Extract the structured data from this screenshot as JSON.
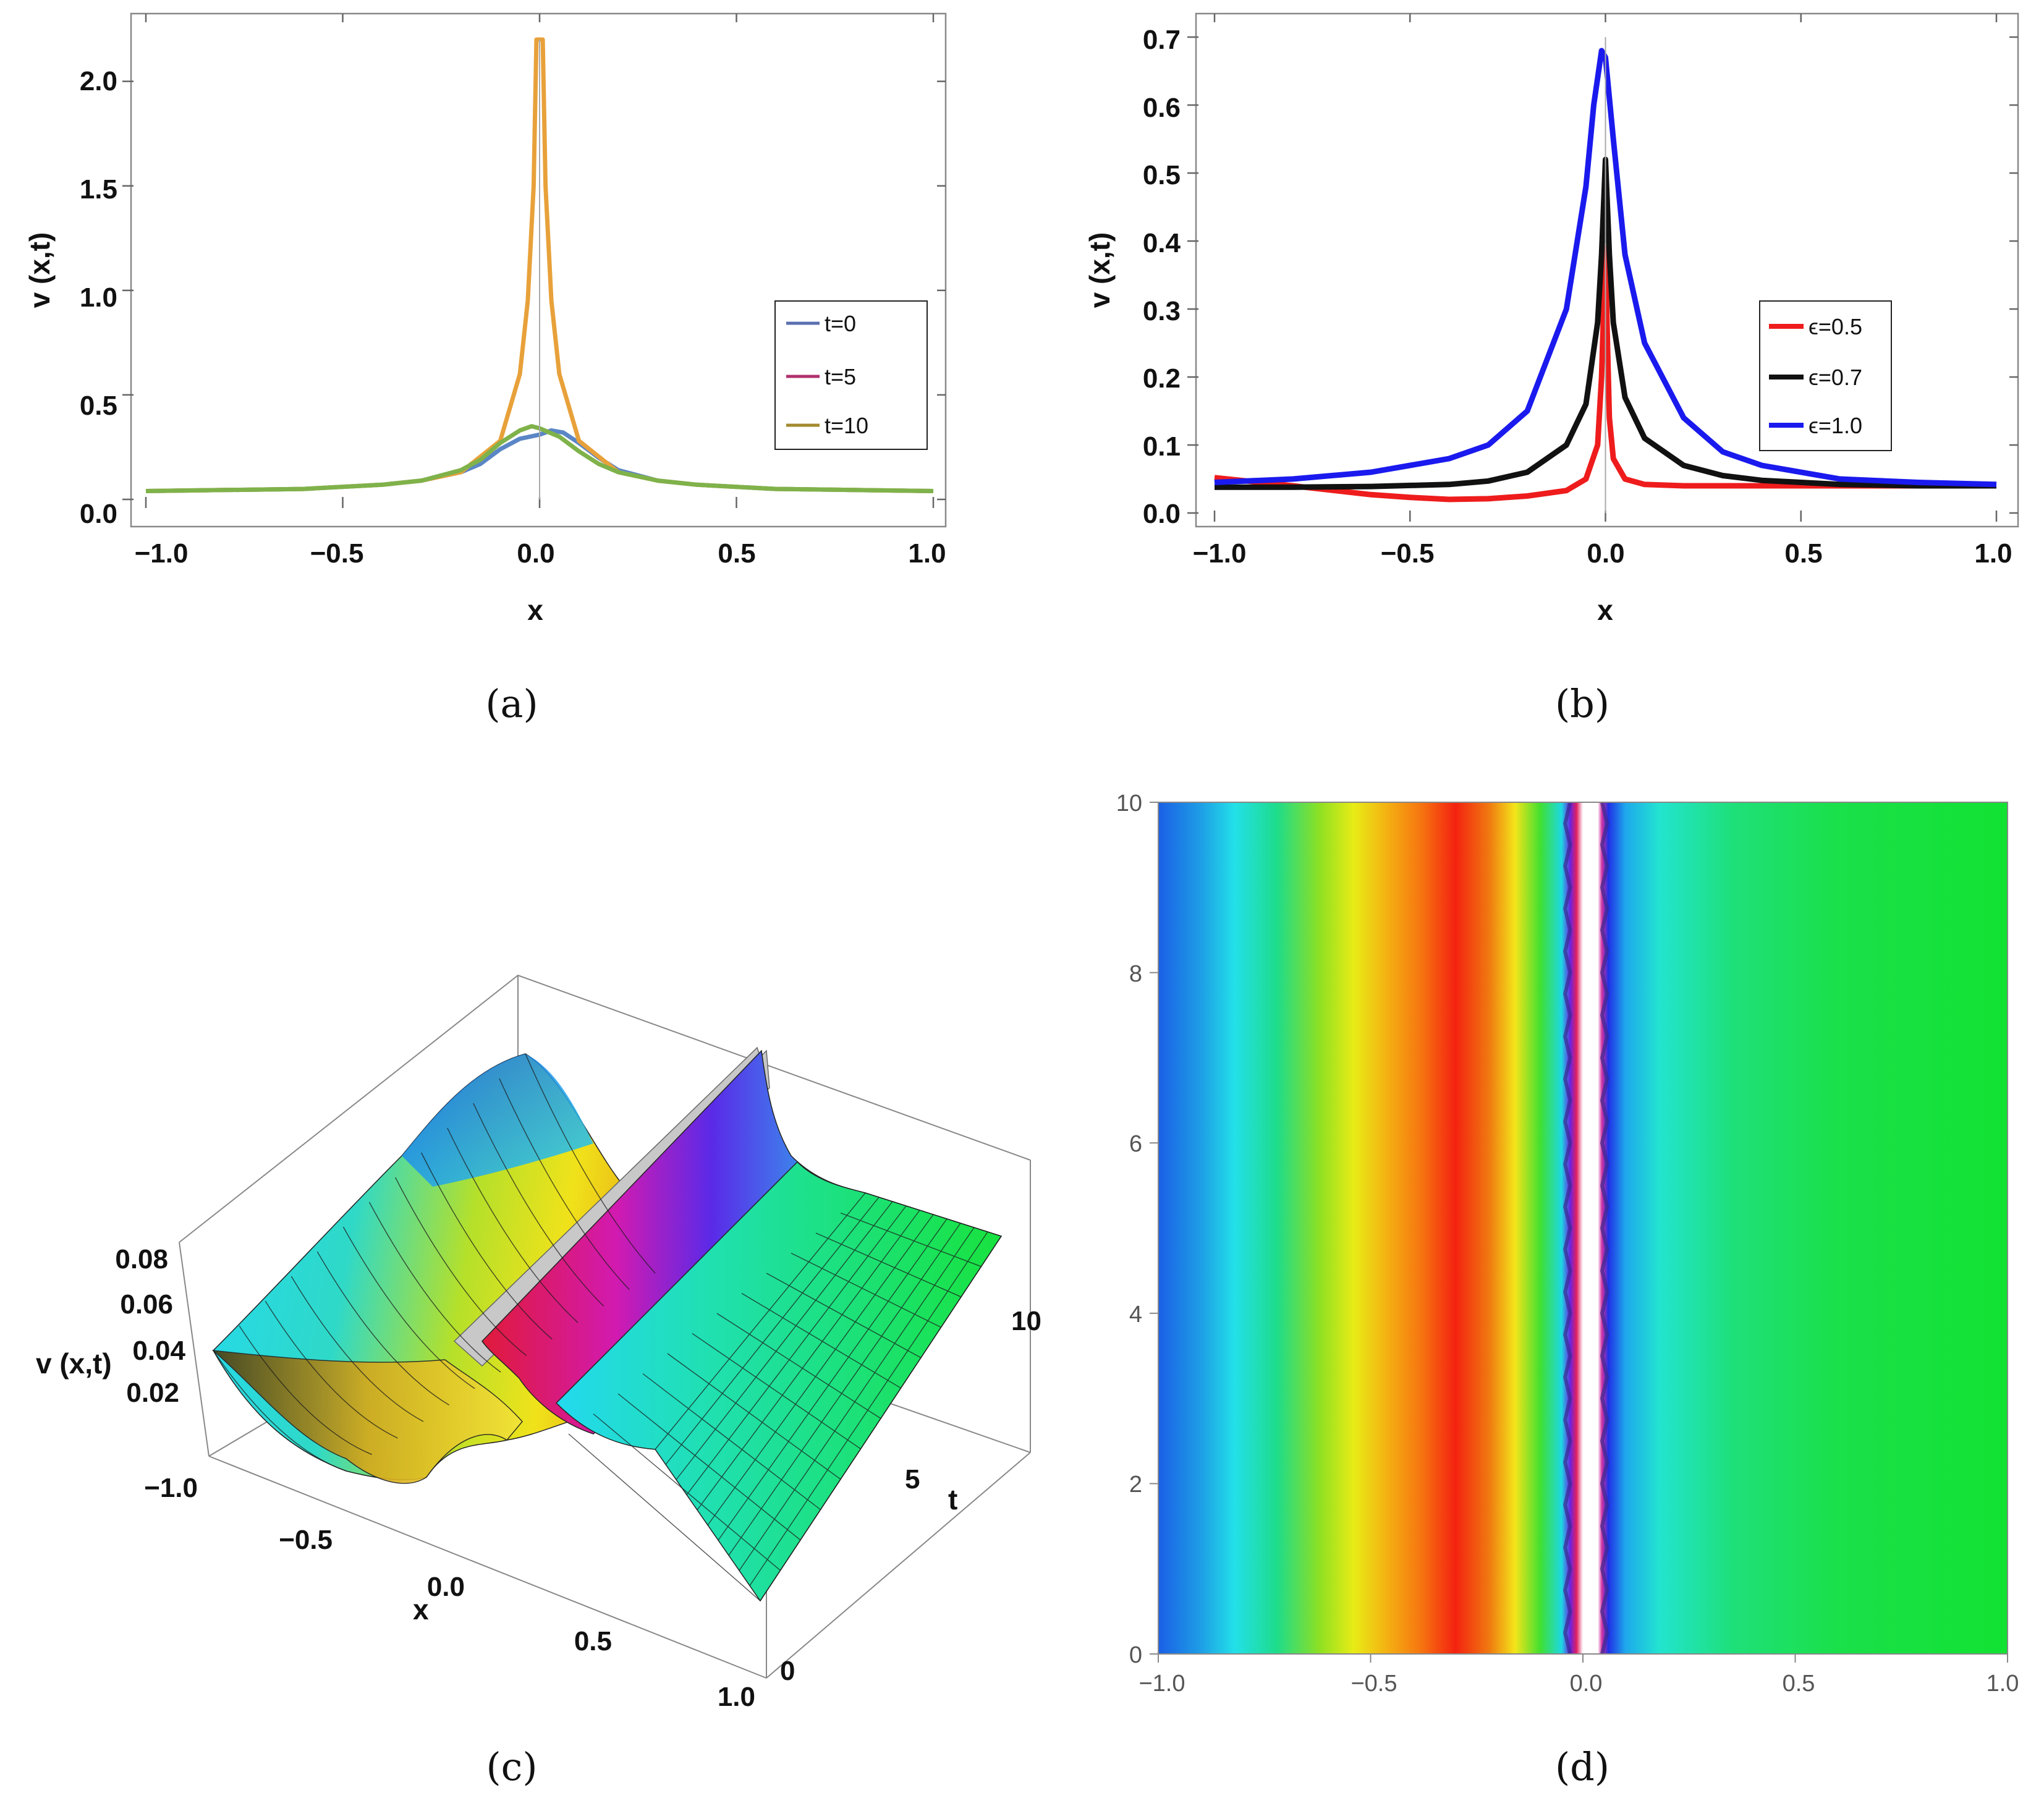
{
  "chart_data": [
    {
      "id": "a",
      "type": "line",
      "caption": "(a)",
      "xlabel": "x",
      "ylabel": "v (x,t)",
      "xlim": [
        -1.0,
        1.0
      ],
      "ylim": [
        0.0,
        2.2
      ],
      "xticks": [
        "−1.0",
        "−0.5",
        "0.0",
        "0.5",
        "1.0"
      ],
      "yticks": [
        "0.0",
        "0.5",
        "1.0",
        "1.5",
        "2.0"
      ],
      "legend_position": "center-right",
      "series": [
        {
          "name": "t=0",
          "legend_color": "#5a6fb0",
          "color": "#5b86c6",
          "x": [
            -1.0,
            -0.8,
            -0.6,
            -0.4,
            -0.3,
            -0.2,
            -0.15,
            -0.1,
            -0.05,
            0.0,
            0.03,
            0.06,
            0.1,
            0.15,
            0.2,
            0.3,
            0.4,
            0.6,
            0.8,
            1.0
          ],
          "y": [
            0.04,
            0.045,
            0.05,
            0.07,
            0.09,
            0.13,
            0.17,
            0.24,
            0.29,
            0.31,
            0.33,
            0.32,
            0.27,
            0.2,
            0.14,
            0.09,
            0.07,
            0.05,
            0.045,
            0.04
          ]
        },
        {
          "name": "t=5",
          "legend_color": "#b0306c",
          "color": "#e8a13a",
          "x": [
            -1.0,
            -0.8,
            -0.6,
            -0.4,
            -0.3,
            -0.2,
            -0.1,
            -0.05,
            -0.03,
            -0.015,
            -0.008,
            0.008,
            0.015,
            0.03,
            0.05,
            0.1,
            0.2,
            0.3,
            0.4,
            0.6,
            0.8,
            1.0
          ],
          "y": [
            0.04,
            0.045,
            0.05,
            0.07,
            0.09,
            0.13,
            0.28,
            0.6,
            0.95,
            1.5,
            2.2,
            2.2,
            1.5,
            0.95,
            0.6,
            0.28,
            0.13,
            0.09,
            0.07,
            0.05,
            0.045,
            0.04
          ]
        },
        {
          "name": "t=10",
          "legend_color": "#a38a2e",
          "color": "#7fb24a",
          "x": [
            -1.0,
            -0.8,
            -0.6,
            -0.4,
            -0.3,
            -0.2,
            -0.15,
            -0.1,
            -0.05,
            -0.02,
            0.0,
            0.05,
            0.1,
            0.15,
            0.2,
            0.3,
            0.4,
            0.6,
            0.8,
            1.0
          ],
          "y": [
            0.04,
            0.045,
            0.05,
            0.07,
            0.09,
            0.14,
            0.19,
            0.27,
            0.33,
            0.35,
            0.34,
            0.3,
            0.23,
            0.17,
            0.13,
            0.09,
            0.07,
            0.05,
            0.045,
            0.04
          ]
        }
      ]
    },
    {
      "id": "b",
      "type": "line",
      "caption": "(b)",
      "xlabel": "x",
      "ylabel": "v (x,t)",
      "xlim": [
        -1.0,
        1.0
      ],
      "ylim": [
        0.0,
        0.7
      ],
      "xticks": [
        "−1.0",
        "−0.5",
        "0.0",
        "0.5",
        "1.0"
      ],
      "yticks": [
        "0.0",
        "0.1",
        "0.2",
        "0.3",
        "0.4",
        "0.5",
        "0.6",
        "0.7"
      ],
      "legend_position": "center-right",
      "series": [
        {
          "name": "ϵ=0.5",
          "color": "#ee1c1c",
          "x": [
            -1.0,
            -0.8,
            -0.6,
            -0.5,
            -0.4,
            -0.3,
            -0.2,
            -0.1,
            -0.05,
            -0.02,
            -0.01,
            0.0,
            0.005,
            0.01,
            0.02,
            0.05,
            0.1,
            0.2,
            0.4,
            0.6,
            0.8,
            1.0
          ],
          "y": [
            0.052,
            0.04,
            0.027,
            0.023,
            0.02,
            0.021,
            0.025,
            0.033,
            0.05,
            0.1,
            0.2,
            0.39,
            0.25,
            0.14,
            0.08,
            0.05,
            0.042,
            0.04,
            0.04,
            0.04,
            0.04,
            0.04
          ]
        },
        {
          "name": "ϵ=0.7",
          "color": "#111111",
          "x": [
            -1.0,
            -0.8,
            -0.6,
            -0.4,
            -0.3,
            -0.2,
            -0.1,
            -0.05,
            -0.02,
            -0.01,
            0.0,
            0.01,
            0.02,
            0.05,
            0.1,
            0.2,
            0.3,
            0.4,
            0.6,
            0.8,
            1.0
          ],
          "y": [
            0.038,
            0.038,
            0.039,
            0.042,
            0.047,
            0.06,
            0.1,
            0.16,
            0.28,
            0.38,
            0.52,
            0.38,
            0.28,
            0.17,
            0.11,
            0.07,
            0.055,
            0.048,
            0.042,
            0.04,
            0.04
          ]
        },
        {
          "name": "ϵ=1.0",
          "color": "#1a1aee",
          "x": [
            -1.0,
            -0.8,
            -0.6,
            -0.4,
            -0.3,
            -0.2,
            -0.1,
            -0.05,
            -0.03,
            -0.01,
            0.0,
            0.02,
            0.05,
            0.1,
            0.2,
            0.3,
            0.4,
            0.6,
            0.8,
            1.0
          ],
          "y": [
            0.045,
            0.05,
            0.06,
            0.08,
            0.1,
            0.15,
            0.3,
            0.48,
            0.6,
            0.68,
            0.67,
            0.55,
            0.38,
            0.25,
            0.14,
            0.09,
            0.07,
            0.05,
            0.045,
            0.042
          ]
        }
      ]
    },
    {
      "id": "c",
      "type": "surface3d",
      "caption": "(c)",
      "xlabel": "x",
      "ylabel": "t",
      "zlabel": "v (x,t)",
      "xticks": [
        "−1.0",
        "−0.5",
        "0.0",
        "0.5",
        "1.0"
      ],
      "yticks": [
        "0",
        "5",
        "10"
      ],
      "zticks": [
        "0.02",
        "0.04",
        "0.06",
        "0.08"
      ]
    },
    {
      "id": "d",
      "type": "heatmap",
      "caption": "(d)",
      "xlim": [
        -1.0,
        1.0
      ],
      "ylim": [
        0,
        10
      ],
      "xticks": [
        "−1.0",
        "−0.5",
        "0.0",
        "0.5",
        "1.0"
      ],
      "yticks": [
        "0",
        "2",
        "4",
        "6",
        "8",
        "10"
      ],
      "colormap": [
        {
          "x": -1.0,
          "color": "#1a5fe6"
        },
        {
          "x": -0.9,
          "color": "#1e9ee6"
        },
        {
          "x": -0.82,
          "color": "#22e0e8"
        },
        {
          "x": -0.72,
          "color": "#1edc8a"
        },
        {
          "x": -0.62,
          "color": "#8ee022"
        },
        {
          "x": -0.54,
          "color": "#e8ec16"
        },
        {
          "x": -0.46,
          "color": "#f4b012"
        },
        {
          "x": -0.38,
          "color": "#f67410"
        },
        {
          "x": -0.3,
          "color": "#f42210"
        },
        {
          "x": -0.22,
          "color": "#f07a10"
        },
        {
          "x": -0.16,
          "color": "#f4e41a"
        },
        {
          "x": -0.1,
          "color": "#40e030"
        },
        {
          "x": -0.05,
          "color": "#1cd8e4"
        },
        {
          "x": -0.03,
          "color": "#6a22e0"
        },
        {
          "x": -0.015,
          "color": "#e02060"
        },
        {
          "x": 0.0,
          "color": "#ffffff"
        },
        {
          "x": 0.035,
          "color": "#ffffff"
        },
        {
          "x": 0.045,
          "color": "#d030a0"
        },
        {
          "x": 0.06,
          "color": "#2030e6"
        },
        {
          "x": 0.1,
          "color": "#1ea8ec"
        },
        {
          "x": 0.18,
          "color": "#22e4d0"
        },
        {
          "x": 0.35,
          "color": "#1ee07a"
        },
        {
          "x": 0.6,
          "color": "#1ae04a"
        },
        {
          "x": 1.0,
          "color": "#12e232"
        }
      ]
    }
  ]
}
